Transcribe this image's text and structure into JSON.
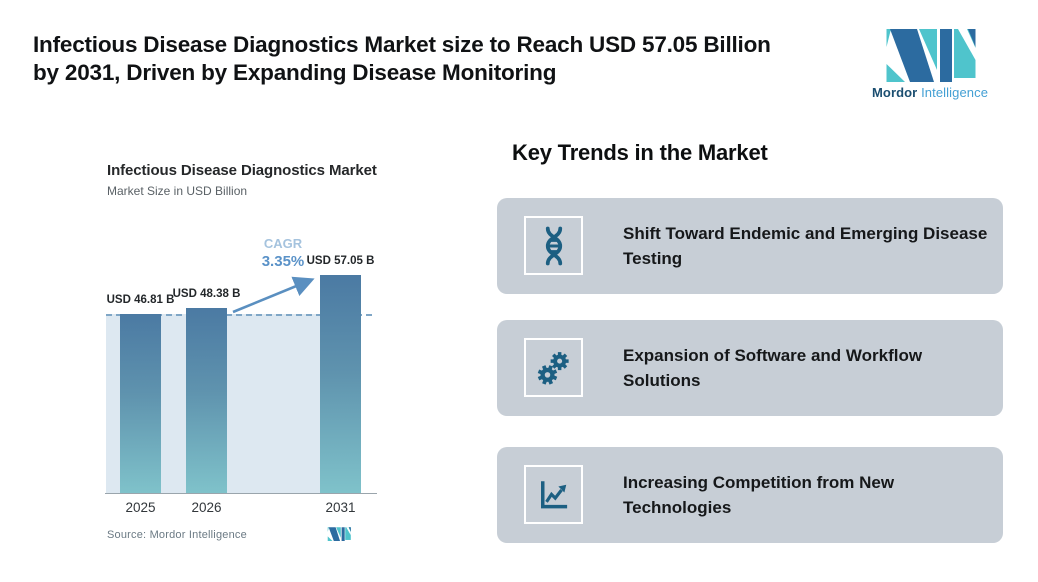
{
  "header": {
    "title_lines": [
      "Infectious Disease Diagnostics Market size to Reach USD 57.05 Billion",
      "by 2031, Driven by Expanding Disease Monitoring"
    ],
    "brand": {
      "name": "Mordor",
      "suffix": "Intelligence"
    }
  },
  "chart": {
    "source": "Source: Mordor Intelligence"
  },
  "chart_data": {
    "type": "bar",
    "title": "Infectious Disease Diagnostics Market",
    "subtitle": "Market Size in USD Billion",
    "categories": [
      "2025",
      "2026",
      "2031"
    ],
    "values": [
      46.81,
      48.38,
      57.05
    ],
    "value_labels": [
      "USD 46.81 B",
      "USD 48.38 B",
      "USD 57.05 B"
    ],
    "unit": "USD Billion",
    "cagr": {
      "label": "CAGR",
      "value": "3.35%"
    },
    "reference_line": {
      "style": "dashed",
      "at_value": 46.81
    },
    "ylim": [
      0,
      58.5
    ],
    "grid": false,
    "legend": false
  },
  "trends": {
    "heading": "Key Trends in the Market",
    "cards": [
      {
        "icon": "dna-helix-icon",
        "text": "Shift Toward Endemic and Emerging Disease Testing"
      },
      {
        "icon": "gears-icon",
        "text": "Expansion of Software and Workflow Solutions"
      },
      {
        "icon": "growth-chart-icon",
        "text": "Increasing Competition from New Technologies"
      }
    ]
  },
  "colors": {
    "card_bg": "#c7ced6",
    "icon_accent": "#1c5f82",
    "brand_teal": "#4fc4cc",
    "brand_blue": "#2c6ba0",
    "bar_gradient_top": "#4b7aa3",
    "bar_gradient_bottom": "#7fc2ca",
    "plot_fill": "#dde8f1",
    "dashed_line": "#7fa6c6",
    "cagr_label": "#a5c3de",
    "cagr_value": "#5a92c8",
    "arrow": "#5a8fc0",
    "source_text": "#6b7a84"
  }
}
